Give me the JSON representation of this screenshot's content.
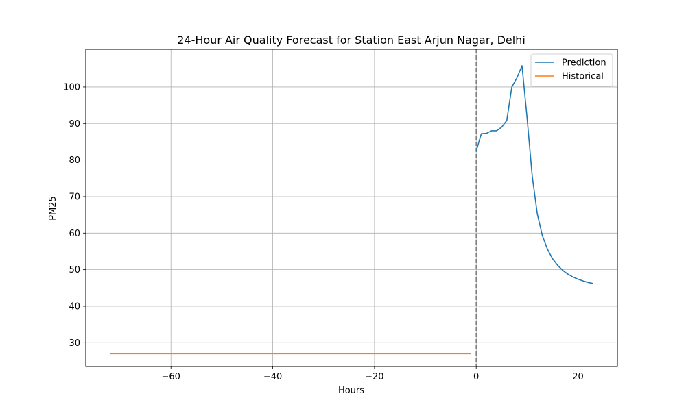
{
  "chart_data": {
    "type": "line",
    "title": "24-Hour Air Quality Forecast for Station East Arjun Nagar, Delhi",
    "xlabel": "Hours",
    "ylabel": "PM25",
    "xlim": [
      -76.75,
      27.75
    ],
    "ylim": [
      23.5,
      110.3
    ],
    "xticks": [
      -60,
      -40,
      -20,
      0,
      20
    ],
    "yticks": [
      30,
      40,
      50,
      60,
      70,
      80,
      90,
      100
    ],
    "xtick_labels": [
      "−60",
      "−40",
      "−20",
      "0",
      "20"
    ],
    "ytick_labels": [
      "30",
      "40",
      "50",
      "60",
      "70",
      "80",
      "90",
      "100"
    ],
    "grid": true,
    "legend_position": "upper right",
    "vline": {
      "x": 0,
      "style": "dashed",
      "color": "#808080"
    },
    "series": [
      {
        "name": "Prediction",
        "color": "#1f77b4",
        "x": [
          0,
          1,
          2,
          3,
          4,
          5,
          6,
          7,
          8,
          9,
          10,
          11,
          12,
          13,
          14,
          15,
          16,
          17,
          18,
          19,
          20,
          21,
          22,
          23
        ],
        "y": [
          82.5,
          87.2,
          87.3,
          88.0,
          88.0,
          89.0,
          90.8,
          100.0,
          102.5,
          105.8,
          91.5,
          75.7,
          65.3,
          59.3,
          55.6,
          53.0,
          51.2,
          49.8,
          48.8,
          48.0,
          47.4,
          46.9,
          46.5,
          46.2
        ]
      },
      {
        "name": "Historical",
        "color": "#ff7f0e",
        "x": [
          -72,
          -71,
          -70,
          -69,
          -68,
          -67,
          -66,
          -65,
          -64,
          -63,
          -62,
          -61,
          -60,
          -59,
          -58,
          -57,
          -56,
          -55,
          -54,
          -53,
          -52,
          -51,
          -50,
          -49,
          -48,
          -47,
          -46,
          -45,
          -44,
          -43,
          -42,
          -41,
          -40,
          -39,
          -38,
          -37,
          -36,
          -35,
          -34,
          -33,
          -32,
          -31,
          -30,
          -29,
          -28,
          -27,
          -26,
          -25,
          -24,
          -23,
          -22,
          -21,
          -20,
          -19,
          -18,
          -17,
          -16,
          -15,
          -14,
          -13,
          -12,
          -11,
          -10,
          -9,
          -8,
          -7,
          -6,
          -5,
          -4,
          -3,
          -2,
          -1
        ],
        "y": [
          27,
          27,
          27,
          27,
          27,
          27,
          27,
          27,
          27,
          27,
          27,
          27,
          27,
          27,
          27,
          27,
          27,
          27,
          27,
          27,
          27,
          27,
          27,
          27,
          27,
          27,
          27,
          27,
          27,
          27,
          27,
          27,
          27,
          27,
          27,
          27,
          27,
          27,
          27,
          27,
          27,
          27,
          27,
          27,
          27,
          27,
          27,
          27,
          27,
          27,
          27,
          27,
          27,
          27,
          27,
          27,
          27,
          27,
          27,
          27,
          27,
          27,
          27,
          27,
          27,
          27,
          27,
          27,
          27,
          27,
          27,
          27
        ]
      }
    ]
  }
}
